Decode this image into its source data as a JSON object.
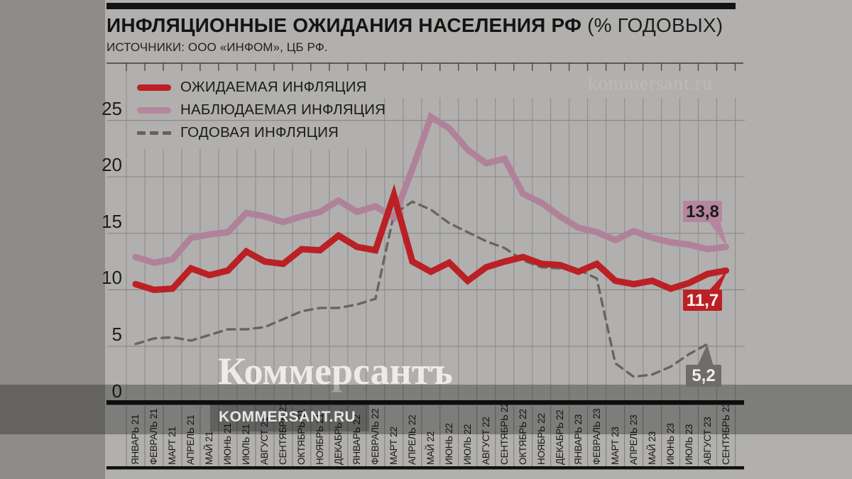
{
  "header": {
    "title_bold": "ИНФЛЯЦИОННЫЕ ОЖИДАНИЯ НАСЕЛЕНИЯ РФ",
    "title_accent": " (% ГОДОВЫХ)",
    "sources": "ИСТОЧНИКИ: ООО «ИНФОМ», ЦБ РФ."
  },
  "watermarks": {
    "top_right": "kommersant.ru",
    "center_logo": "Коммерсантъ",
    "bottom": "KOMMERSANT.RU"
  },
  "legend": {
    "items": [
      {
        "label": "ОЖИДАЕМАЯ ИНФЛЯЦИЯ",
        "swatch": "solid-red"
      },
      {
        "label": "НАБЛЮДАЕМАЯ ИНФЛЯЦИЯ",
        "swatch": "solid-pink"
      },
      {
        "label": "ГОДОВАЯ ИНФЛЯЦИЯ",
        "swatch": "dashed-gray"
      }
    ]
  },
  "chart_data": {
    "type": "line",
    "title": "ИНФЛЯЦИОННЫЕ ОЖИДАНИЯ НАСЕЛЕНИЯ РФ (% ГОДОВЫХ)",
    "xlabel": "",
    "ylabel": "",
    "ylim": [
      0,
      30
    ],
    "grid": true,
    "legend_position": "top-left",
    "y_ticks": [
      0,
      5,
      10,
      15,
      20,
      25
    ],
    "categories": [
      "ЯНВАРЬ 21",
      "ФЕВРАЛЬ 21",
      "МАРТ 21",
      "АПРЕЛЬ 21",
      "МАЙ 21",
      "ИЮНЬ 21",
      "ИЮЛЬ 21",
      "АВГУСТ 21",
      "СЕНТЯБРЬ 21",
      "ОКТЯБРЬ 21",
      "НОЯБРЬ 21",
      "ДЕКАБРЬ 21",
      "ЯНВАРЬ 22",
      "ФЕВРАЛЬ 22",
      "МАРТ 22",
      "АПРЕЛЬ 22",
      "МАЙ 22",
      "ИЮНЬ 22",
      "ИЮЛЬ 22",
      "АВГУСТ 22",
      "СЕНТЯБРЬ 22",
      "ОКТЯБРЬ 22",
      "НОЯБРЬ 22",
      "ДЕКАБРЬ 22",
      "ЯНВАРЬ 23",
      "ФЕВРАЛЬ 23",
      "МАРТ 23",
      "АПРЕЛЬ 23",
      "МАЙ 23",
      "ИЮНЬ 23",
      "ИЮЛЬ 23",
      "АВГУСТ 23",
      "СЕНТЯБРЬ 23"
    ],
    "series": [
      {
        "name": "ОЖИДАЕМАЯ ИНФЛЯЦИЯ",
        "color": "#bb2025",
        "style": "solid",
        "values": [
          10.5,
          10.0,
          10.1,
          11.9,
          11.3,
          11.7,
          13.4,
          12.5,
          12.3,
          13.6,
          13.5,
          14.8,
          13.8,
          13.5,
          18.4,
          12.5,
          11.6,
          12.4,
          10.8,
          12.0,
          12.5,
          12.9,
          12.3,
          12.2,
          11.6,
          12.3,
          10.8,
          10.5,
          10.8,
          10.1,
          10.6,
          11.4,
          11.7
        ]
      },
      {
        "name": "НАБЛЮДАЕМАЯ ИНФЛЯЦИЯ",
        "color": "#b08299",
        "style": "solid",
        "values": [
          12.9,
          12.4,
          12.7,
          14.6,
          14.9,
          15.1,
          16.8,
          16.5,
          16.0,
          16.5,
          16.9,
          17.9,
          16.9,
          17.4,
          16.4,
          20.7,
          25.3,
          24.3,
          22.4,
          21.2,
          21.6,
          18.5,
          17.7,
          16.5,
          15.5,
          15.1,
          14.4,
          15.2,
          14.6,
          14.2,
          14.0,
          13.6,
          13.8
        ]
      },
      {
        "name": "ГОДОВАЯ ИНФЛЯЦИЯ",
        "color": "#66655f",
        "style": "dashed",
        "values": [
          5.2,
          5.7,
          5.8,
          5.5,
          6.0,
          6.5,
          6.5,
          6.7,
          7.4,
          8.1,
          8.4,
          8.4,
          8.7,
          9.2,
          16.7,
          17.8,
          17.1,
          15.9,
          15.1,
          14.3,
          13.7,
          12.6,
          12.0,
          11.9,
          11.8,
          11.0,
          3.5,
          2.3,
          2.5,
          3.2,
          4.3,
          5.2,
          null
        ]
      }
    ],
    "annotations": [
      {
        "series": "НАБЛЮДАЕМАЯ ИНФЛЯЦИЯ",
        "month": "СЕНТЯБРЬ 23",
        "label": "13,8",
        "value": 13.8
      },
      {
        "series": "ОЖИДАЕМАЯ ИНФЛЯЦИЯ",
        "month": "СЕНТЯБРЬ 23",
        "label": "11,7",
        "value": 11.7
      },
      {
        "series": "ГОДОВАЯ ИНФЛЯЦИЯ",
        "month": "АВГУСТ 23",
        "label": "5,2",
        "value": 5.2
      }
    ]
  }
}
